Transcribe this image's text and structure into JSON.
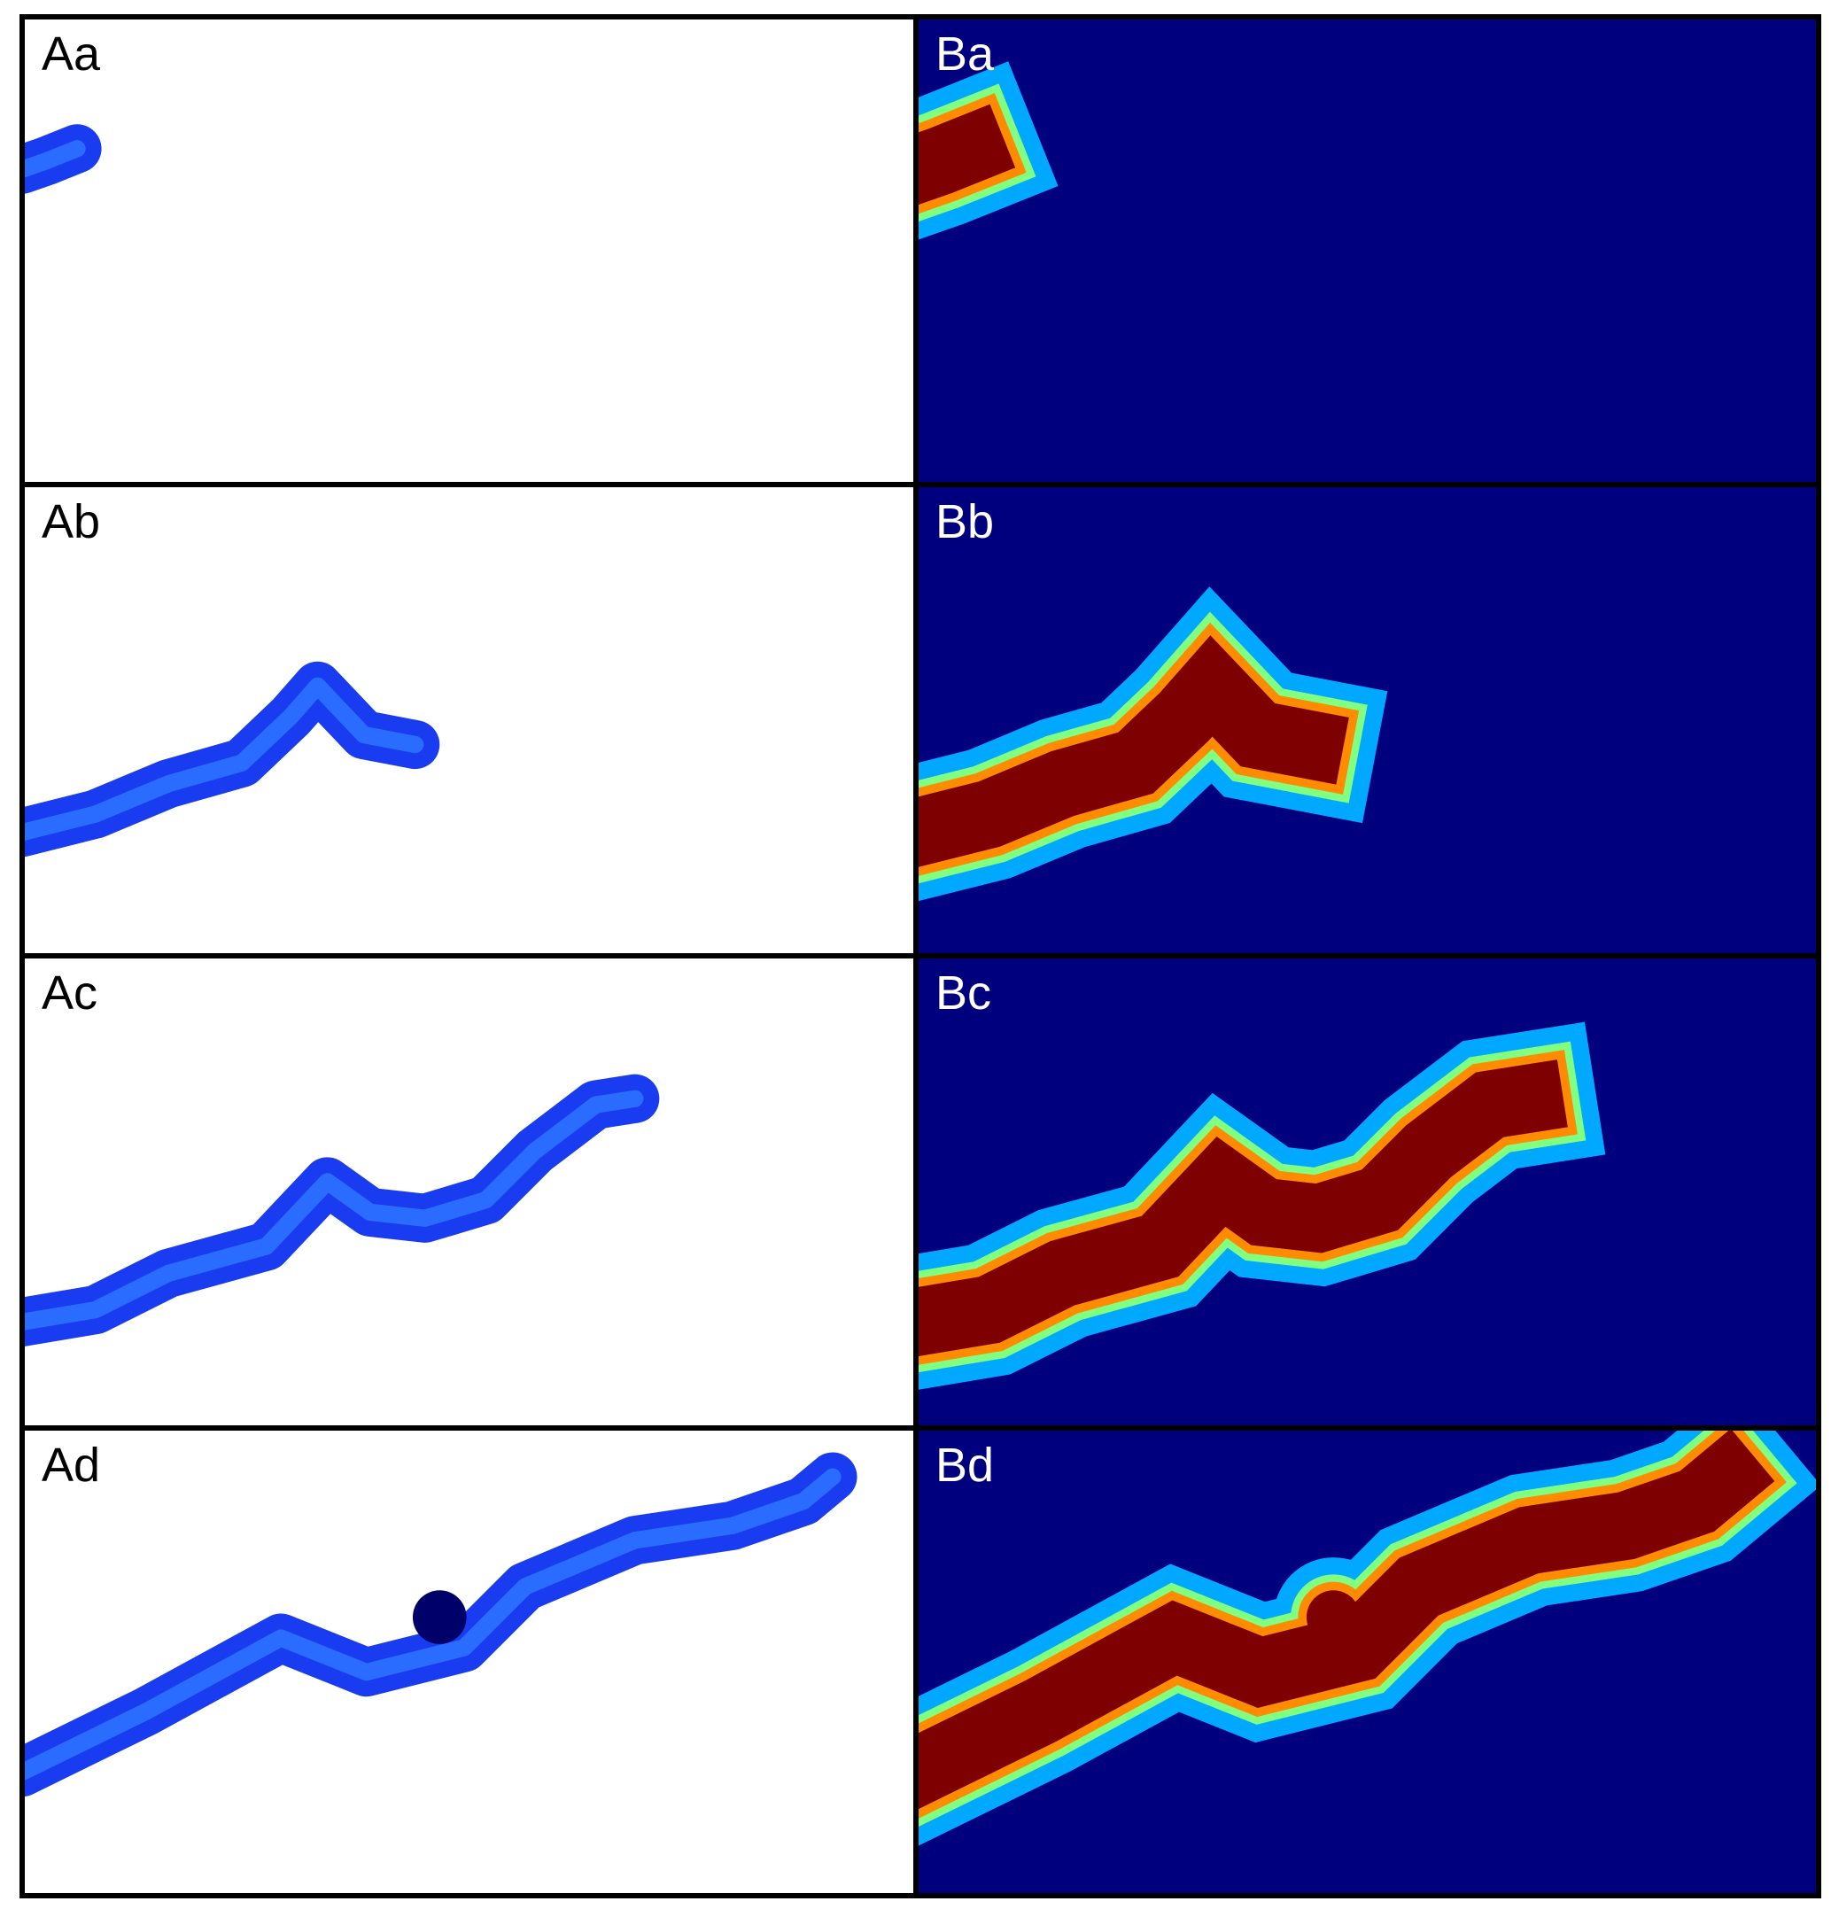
{
  "rows": [
    {
      "left": "Aa",
      "right": "Ba"
    },
    {
      "left": "Ab",
      "right": "Bb"
    },
    {
      "left": "Ac",
      "right": "Bc"
    },
    {
      "left": "Ad",
      "right": "Bd"
    }
  ]
}
